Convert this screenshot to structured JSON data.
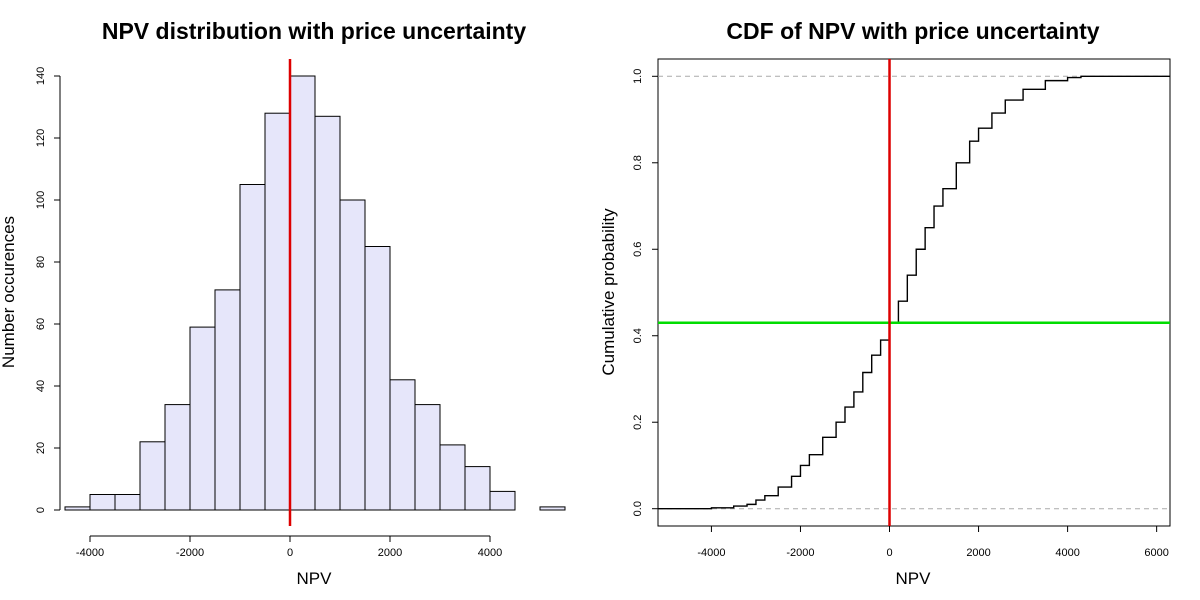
{
  "chart_data": [
    {
      "type": "bar",
      "title": "NPV distribution with price uncertainty",
      "xlabel": "NPV",
      "ylabel": "Number occurences",
      "bin_edges": [
        -4500,
        -4000,
        -3500,
        -3000,
        -2500,
        -2000,
        -1500,
        -1000,
        -500,
        0,
        500,
        1000,
        1500,
        2000,
        2500,
        3000,
        3500,
        4000,
        4500,
        5000,
        5500
      ],
      "values": [
        1,
        5,
        5,
        22,
        34,
        59,
        71,
        105,
        128,
        140,
        127,
        100,
        85,
        42,
        34,
        21,
        14,
        6,
        0,
        1
      ],
      "xlim": [
        -4600,
        5600
      ],
      "ylim": [
        0,
        140
      ],
      "x_ticks": [
        -4000,
        -2000,
        0,
        2000,
        4000
      ],
      "x_tick_labels": [
        "-4000",
        "-2000",
        "0",
        "2000",
        "4000"
      ],
      "y_ticks": [
        0,
        20,
        40,
        60,
        80,
        100,
        120,
        140
      ],
      "y_tick_labels": [
        "0",
        "20",
        "40",
        "60",
        "80",
        "100",
        "120",
        "140"
      ],
      "vline_x": 0,
      "bar_fill": "#e6e6fa",
      "vline_color": "#dd0000"
    },
    {
      "type": "line",
      "title": "CDF of NPV with price uncertainty",
      "xlabel": "NPV",
      "ylabel": "Cumulative probability",
      "x": [
        -4500,
        -4000,
        -3500,
        -3200,
        -3000,
        -2800,
        -2500,
        -2200,
        -2000,
        -1800,
        -1500,
        -1200,
        -1000,
        -800,
        -600,
        -400,
        -200,
        0,
        200,
        400,
        600,
        800,
        1000,
        1200,
        1500,
        1800,
        2000,
        2300,
        2600,
        3000,
        3500,
        4000,
        4300,
        6300
      ],
      "y": [
        0.0,
        0.002,
        0.006,
        0.01,
        0.02,
        0.03,
        0.05,
        0.075,
        0.1,
        0.125,
        0.165,
        0.2,
        0.235,
        0.27,
        0.315,
        0.355,
        0.39,
        0.43,
        0.48,
        0.54,
        0.6,
        0.65,
        0.7,
        0.74,
        0.8,
        0.85,
        0.88,
        0.915,
        0.945,
        0.97,
        0.99,
        0.997,
        1.0,
        1.0
      ],
      "xlim": [
        -5200,
        6300
      ],
      "ylim": [
        -0.04,
        1.04
      ],
      "x_ticks": [
        -4000,
        -2000,
        0,
        2000,
        4000,
        6000
      ],
      "x_tick_labels": [
        "-4000",
        "-2000",
        "0",
        "2000",
        "4000",
        "6000"
      ],
      "y_ticks": [
        0,
        0.2,
        0.4,
        0.6,
        0.8,
        1.0
      ],
      "y_tick_labels": [
        "0.0",
        "0.2",
        "0.4",
        "0.6",
        "0.8",
        "1.0"
      ],
      "hlines_dashed": [
        0,
        1
      ],
      "vline_x": 0,
      "hline_y": 0.43,
      "vline_color": "#dd0000",
      "hline_color": "#00dd00"
    }
  ]
}
